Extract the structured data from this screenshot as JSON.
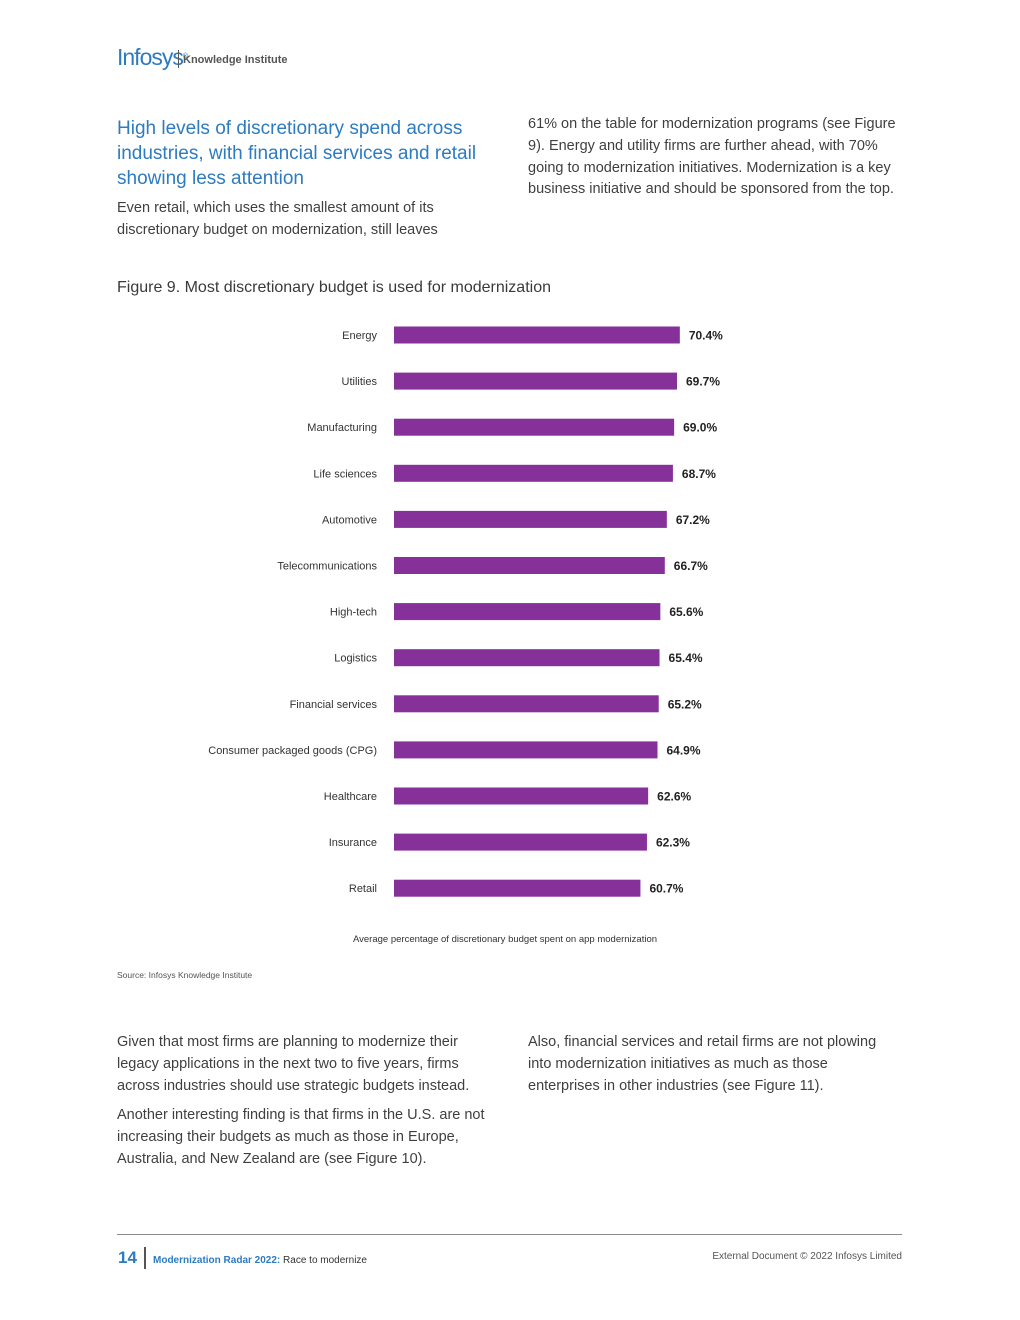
{
  "header": {
    "logo_text": "Infosys",
    "logo_reg": "®",
    "logo_sub": "Knowledge Institute"
  },
  "section": {
    "heading": "High levels of discretionary spend across industries, with financial services and retail showing less attention",
    "left_text": "Even retail, which uses the smallest amount of its discretionary budget on modernization, still leaves",
    "right_text": "61% on the table for modernization programs (see Figure 9). Energy and utility firms are further ahead, with 70% going to modernization initiatives. Modernization is a key business initiative and should be sponsored from the top."
  },
  "figure": {
    "title": "Figure 9. Most discretionary budget is used for modernization",
    "source": "Source: Infosys Knowledge Institute"
  },
  "chart_data": {
    "type": "bar",
    "orientation": "horizontal",
    "categories": [
      "Energy",
      "Utilities",
      "Manufacturing",
      "Life sciences",
      "Automotive",
      "Telecommunications",
      "High-tech",
      "Logistics",
      "Financial services",
      "Consumer packaged goods (CPG)",
      "Healthcare",
      "Insurance",
      "Retail"
    ],
    "values": [
      70.4,
      69.7,
      69.0,
      68.7,
      67.2,
      66.7,
      65.6,
      65.4,
      65.2,
      64.9,
      62.6,
      62.3,
      60.7
    ],
    "value_labels": [
      "70.4%",
      "69.7%",
      "69.0%",
      "68.7%",
      "67.2%",
      "66.7%",
      "65.6%",
      "65.4%",
      "65.2%",
      "64.9%",
      "62.6%",
      "62.3%",
      "60.7%"
    ],
    "xlabel": "Average percentage of discretionary budget spent on app modernization",
    "bar_color": "#86309a",
    "grid": false,
    "legend": "none"
  },
  "bottom": {
    "left_p1": "Given that most firms are planning to modernize their legacy applications in the next two to five years, firms across industries should use strategic budgets instead.",
    "left_p2": "Another interesting finding is that firms in the U.S. are not increasing their budgets as much as those in Europe, Australia, and New Zealand are (see Figure 10).",
    "right_p1": "Also, financial services and retail firms are not plowing into modernization initiatives as much as those enterprises in other industries (see Figure 11)."
  },
  "footer": {
    "page_number": "14",
    "title_accent": "Modernization Radar 2022:",
    "title_rest": " Race to modernize",
    "right_text": "External Document © 2022 Infosys Limited"
  },
  "colors": {
    "accent": "#2d7bc0",
    "bar": "#86309a"
  }
}
